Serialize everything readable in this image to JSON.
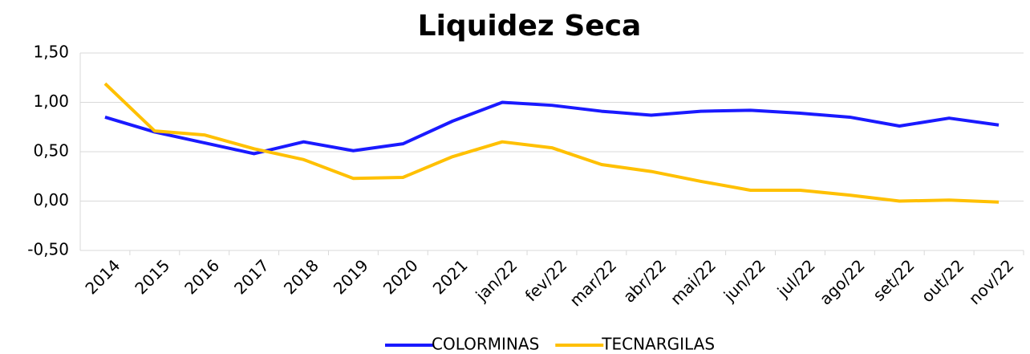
{
  "chart_data": {
    "type": "line",
    "title": "Liquidez Seca",
    "categories": [
      "2014",
      "2015",
      "2016",
      "2017",
      "2018",
      "2019",
      "2020",
      "2021",
      "jan/22",
      "fev/22",
      "mar/22",
      "abr/22",
      "mai/22",
      "jun/22",
      "jul/22",
      "ago/22",
      "set/22",
      "out/22",
      "nov/22"
    ],
    "series": [
      {
        "name": "COLORMINAS",
        "color": "#1a1aff",
        "values": [
          0.85,
          0.7,
          0.59,
          0.48,
          0.6,
          0.51,
          0.58,
          0.81,
          1.0,
          0.97,
          0.91,
          0.87,
          0.91,
          0.92,
          0.89,
          0.85,
          0.76,
          0.84,
          0.77
        ]
      },
      {
        "name": "TECNARGILAS",
        "color": "#ffc000",
        "values": [
          1.19,
          0.71,
          0.67,
          0.53,
          0.42,
          0.23,
          0.24,
          0.45,
          0.6,
          0.54,
          0.37,
          0.3,
          0.2,
          0.11,
          0.11,
          0.06,
          0.0,
          0.01,
          -0.01
        ]
      }
    ],
    "ylim": [
      -0.5,
      1.5
    ],
    "yticks": [
      {
        "value": -0.5,
        "label": "-0,50"
      },
      {
        "value": 0,
        "label": "0,00"
      },
      {
        "value": 0.5,
        "label": "0,50"
      },
      {
        "value": 1,
        "label": "1,00"
      },
      {
        "value": 1.5,
        "label": "1,50"
      }
    ],
    "grid": true,
    "legend": "bottom"
  }
}
